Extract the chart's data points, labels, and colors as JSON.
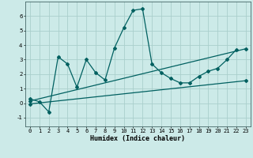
{
  "xlabel": "Humidex (Indice chaleur)",
  "bg_color": "#cceae8",
  "grid_color": "#aacfcc",
  "line_color": "#006060",
  "xlim": [
    -0.5,
    23.5
  ],
  "ylim": [
    -1.6,
    7.0
  ],
  "xticks": [
    0,
    1,
    2,
    3,
    4,
    5,
    6,
    7,
    8,
    9,
    10,
    11,
    12,
    13,
    14,
    15,
    16,
    17,
    18,
    19,
    20,
    21,
    22,
    23
  ],
  "yticks": [
    -1,
    0,
    1,
    2,
    3,
    4,
    5,
    6
  ],
  "main_series_x": [
    0,
    1,
    2,
    3,
    4,
    5,
    6,
    7,
    8,
    9,
    10,
    11,
    12,
    13,
    14,
    15,
    16,
    17,
    18,
    19,
    20,
    21,
    22
  ],
  "main_series_y": [
    0.3,
    0.1,
    -0.6,
    3.2,
    2.7,
    1.1,
    3.0,
    2.1,
    1.6,
    3.8,
    5.2,
    6.4,
    6.5,
    2.7,
    2.1,
    1.7,
    1.4,
    1.4,
    1.85,
    2.2,
    2.4,
    3.0,
    3.7
  ],
  "lower_line_x": [
    0,
    23
  ],
  "lower_line_y": [
    -0.05,
    1.55
  ],
  "upper_line_x": [
    0,
    23
  ],
  "upper_line_y": [
    0.15,
    3.75
  ],
  "marker_size": 2.0,
  "line_width": 0.9,
  "xlabel_fontsize": 6.0,
  "tick_fontsize": 5.0
}
